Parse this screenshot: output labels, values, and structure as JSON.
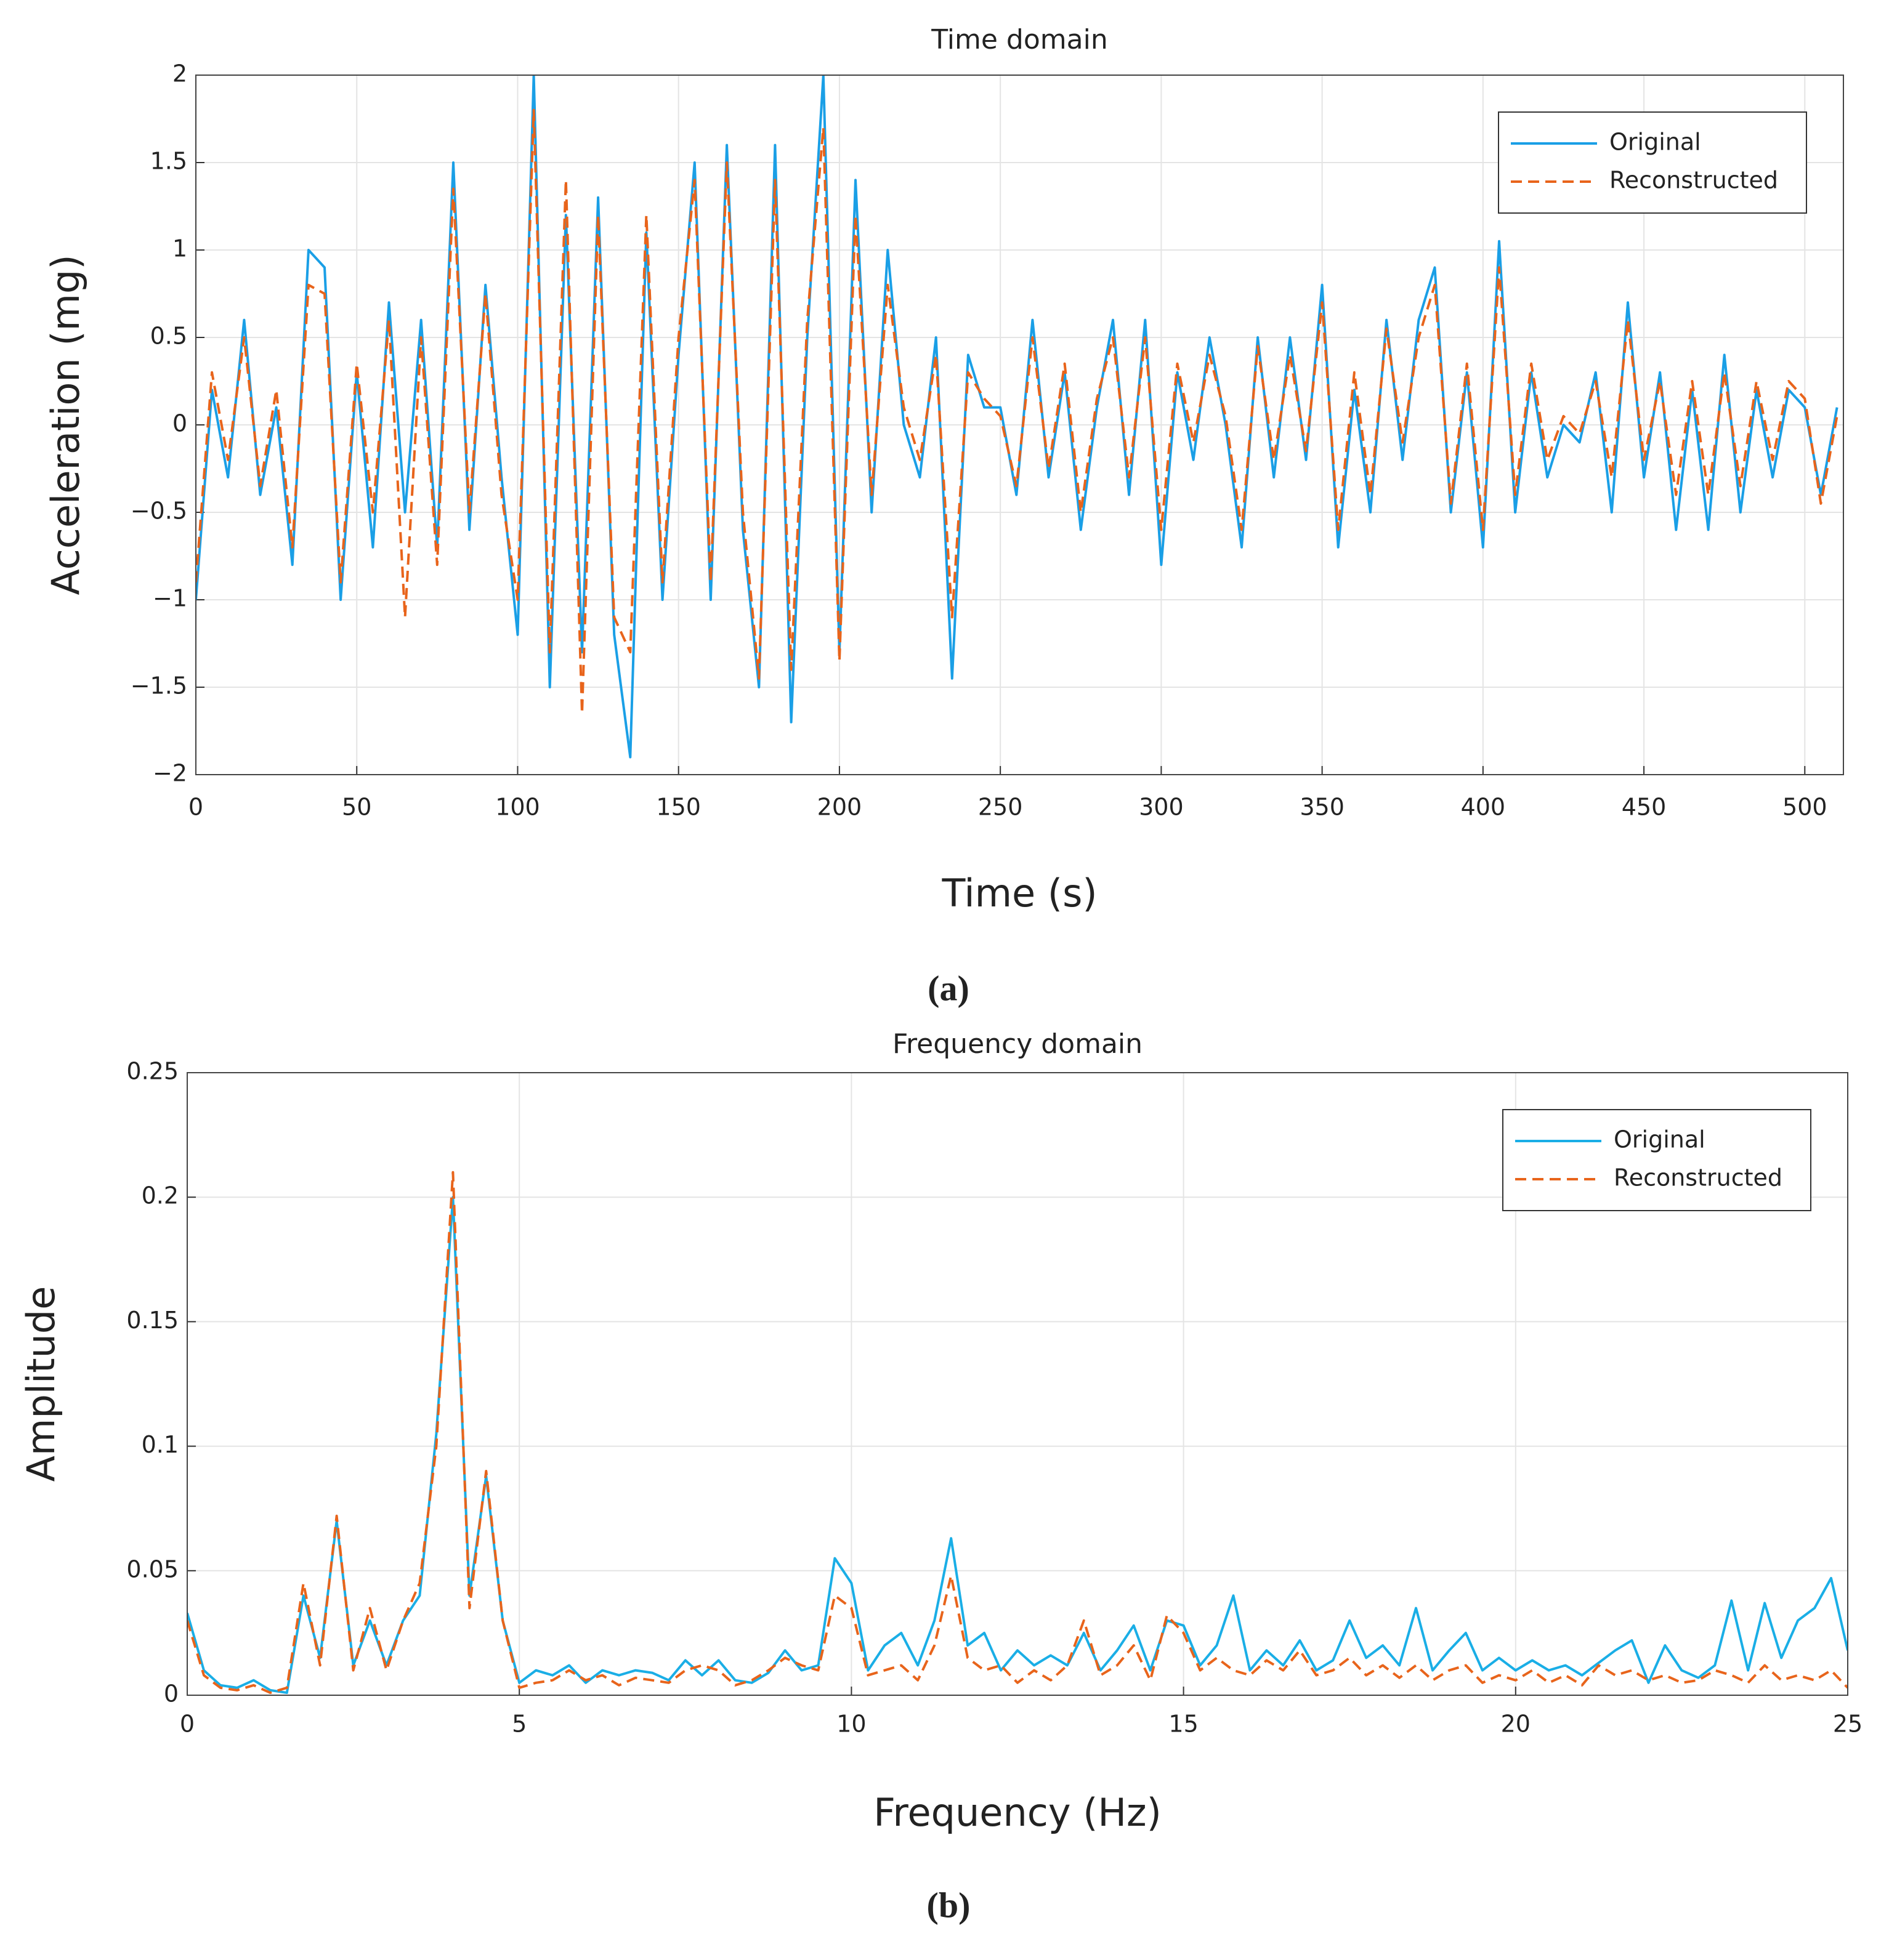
{
  "chart_data": [
    {
      "type": "line",
      "title": "Time domain",
      "x_label": "Time (s)",
      "y_label": "Acceleration (mg)",
      "caption": "(a)",
      "xlim": [
        0,
        512
      ],
      "xticks": [
        0,
        50,
        100,
        150,
        200,
        250,
        300,
        350,
        400,
        450,
        500
      ],
      "ylim": [
        -2,
        2
      ],
      "yticks": [
        {
          "value": -2,
          "label": "−2"
        },
        {
          "value": -1.5,
          "label": "−1.5"
        },
        {
          "value": -1,
          "label": "−1"
        },
        {
          "value": -0.5,
          "label": "−0.5"
        },
        0,
        0.5,
        1,
        1.5,
        2
      ],
      "grid": true,
      "legend": "northeast",
      "x": [
        0,
        5,
        10,
        15,
        20,
        25,
        30,
        35,
        40,
        45,
        50,
        55,
        60,
        65,
        70,
        75,
        80,
        85,
        90,
        95,
        100,
        105,
        110,
        115,
        120,
        125,
        130,
        135,
        140,
        145,
        150,
        155,
        160,
        165,
        170,
        175,
        180,
        185,
        190,
        195,
        200,
        205,
        210,
        215,
        220,
        225,
        230,
        235,
        240,
        245,
        250,
        255,
        260,
        265,
        270,
        275,
        280,
        285,
        290,
        295,
        300,
        305,
        310,
        315,
        320,
        325,
        330,
        335,
        340,
        345,
        350,
        355,
        360,
        365,
        370,
        375,
        380,
        385,
        390,
        395,
        400,
        405,
        410,
        415,
        420,
        425,
        430,
        435,
        440,
        445,
        450,
        455,
        460,
        465,
        470,
        475,
        480,
        485,
        490,
        495,
        500,
        505,
        510
      ],
      "series": [
        {
          "name": "Original",
          "color": "#1a9fe6",
          "style": "solid",
          "values": [
            -1.0,
            0.2,
            -0.3,
            0.6,
            -0.4,
            0.1,
            -0.8,
            1.0,
            0.9,
            -1.0,
            0.3,
            -0.7,
            0.7,
            -0.5,
            0.6,
            -0.7,
            1.5,
            -0.6,
            0.8,
            -0.3,
            -1.2,
            2.0,
            -1.5,
            1.2,
            -1.3,
            1.3,
            -1.2,
            -1.9,
            1.1,
            -1.0,
            0.4,
            1.5,
            -1.0,
            1.6,
            -0.6,
            -1.5,
            1.6,
            -1.7,
            0.5,
            2.0,
            -1.3,
            1.4,
            -0.5,
            1.0,
            0.0,
            -0.3,
            0.5,
            -1.45,
            0.4,
            0.1,
            0.1,
            -0.4,
            0.6,
            -0.3,
            0.3,
            -0.6,
            0.1,
            0.6,
            -0.4,
            0.6,
            -0.8,
            0.3,
            -0.2,
            0.5,
            0.0,
            -0.7,
            0.5,
            -0.3,
            0.5,
            -0.2,
            0.8,
            -0.7,
            0.2,
            -0.5,
            0.6,
            -0.2,
            0.6,
            0.9,
            -0.5,
            0.3,
            -0.7,
            1.05,
            -0.5,
            0.3,
            -0.3,
            0.0,
            -0.1,
            0.3,
            -0.5,
            0.7,
            -0.3,
            0.3,
            -0.6,
            0.2,
            -0.6,
            0.4,
            -0.5,
            0.2,
            -0.3,
            0.2,
            0.1,
            -0.4,
            0.1
          ]
        },
        {
          "name": "Reconstructed",
          "color": "#e8641b",
          "style": "dashed",
          "values": [
            -0.9,
            0.3,
            -0.2,
            0.5,
            -0.35,
            0.2,
            -0.7,
            0.8,
            0.75,
            -0.9,
            0.35,
            -0.5,
            0.6,
            -1.1,
            0.5,
            -0.8,
            1.35,
            -0.5,
            0.75,
            -0.4,
            -1.0,
            1.8,
            -1.3,
            1.4,
            -1.65,
            1.2,
            -1.1,
            -1.3,
            1.2,
            -0.9,
            0.5,
            1.4,
            -0.9,
            1.5,
            -0.5,
            -1.45,
            1.4,
            -1.4,
            0.6,
            1.7,
            -1.35,
            1.2,
            -0.4,
            0.8,
            0.1,
            -0.2,
            0.4,
            -1.1,
            0.3,
            0.15,
            0.05,
            -0.35,
            0.5,
            -0.25,
            0.35,
            -0.5,
            0.15,
            0.5,
            -0.3,
            0.5,
            -0.6,
            0.35,
            -0.1,
            0.4,
            0.05,
            -0.6,
            0.45,
            -0.2,
            0.4,
            -0.15,
            0.7,
            -0.6,
            0.3,
            -0.4,
            0.55,
            -0.1,
            0.5,
            0.8,
            -0.45,
            0.35,
            -0.6,
            0.9,
            -0.4,
            0.35,
            -0.2,
            0.05,
            -0.05,
            0.25,
            -0.3,
            0.6,
            -0.2,
            0.25,
            -0.4,
            0.25,
            -0.4,
            0.3,
            -0.35,
            0.25,
            -0.2,
            0.25,
            0.15,
            -0.45,
            0.05
          ]
        }
      ]
    },
    {
      "type": "line",
      "title": "Frequency domain",
      "x_label": "Frequency (Hz)",
      "y_label": "Amplitude",
      "caption": "(b)",
      "xlim": [
        0,
        25
      ],
      "xticks": [
        0,
        5,
        10,
        15,
        20,
        25
      ],
      "ylim": [
        0,
        0.25
      ],
      "yticks": [
        0,
        0.05,
        0.1,
        0.15,
        0.2,
        0.25
      ],
      "grid": true,
      "legend": "northeast",
      "x": [
        0,
        0.25,
        0.5,
        0.75,
        1,
        1.25,
        1.5,
        1.75,
        2,
        2.25,
        2.5,
        2.75,
        3,
        3.25,
        3.5,
        3.75,
        4,
        4.25,
        4.5,
        4.75,
        5,
        5.25,
        5.5,
        5.75,
        6,
        6.25,
        6.5,
        6.75,
        7,
        7.25,
        7.5,
        7.75,
        8,
        8.25,
        8.5,
        8.75,
        9,
        9.25,
        9.5,
        9.75,
        10,
        10.25,
        10.5,
        10.75,
        11,
        11.25,
        11.5,
        11.75,
        12,
        12.25,
        12.5,
        12.75,
        13,
        13.25,
        13.5,
        13.75,
        14,
        14.25,
        14.5,
        14.75,
        15,
        15.25,
        15.5,
        15.75,
        16,
        16.25,
        16.5,
        16.75,
        17,
        17.25,
        17.5,
        17.75,
        18,
        18.25,
        18.5,
        18.75,
        19,
        19.25,
        19.5,
        19.75,
        20,
        20.25,
        20.5,
        20.75,
        21,
        21.25,
        21.5,
        21.75,
        22,
        22.25,
        22.5,
        22.75,
        23,
        23.25,
        23.5,
        23.75,
        24,
        24.25,
        24.5,
        24.75,
        25
      ],
      "series": [
        {
          "name": "Original",
          "color": "#1aaee6",
          "style": "solid",
          "values": [
            0.033,
            0.01,
            0.004,
            0.003,
            0.006,
            0.002,
            0.001,
            0.04,
            0.015,
            0.07,
            0.012,
            0.03,
            0.012,
            0.03,
            0.04,
            0.105,
            0.2,
            0.04,
            0.088,
            0.03,
            0.005,
            0.01,
            0.008,
            0.012,
            0.005,
            0.01,
            0.008,
            0.01,
            0.009,
            0.006,
            0.014,
            0.008,
            0.014,
            0.006,
            0.005,
            0.009,
            0.018,
            0.01,
            0.012,
            0.055,
            0.045,
            0.01,
            0.02,
            0.025,
            0.012,
            0.03,
            0.063,
            0.02,
            0.025,
            0.01,
            0.018,
            0.012,
            0.016,
            0.012,
            0.025,
            0.01,
            0.018,
            0.028,
            0.01,
            0.03,
            0.028,
            0.012,
            0.02,
            0.04,
            0.01,
            0.018,
            0.012,
            0.022,
            0.01,
            0.014,
            0.03,
            0.015,
            0.02,
            0.012,
            0.035,
            0.01,
            0.018,
            0.025,
            0.01,
            0.015,
            0.01,
            0.014,
            0.01,
            0.012,
            0.008,
            0.013,
            0.018,
            0.022,
            0.005,
            0.02,
            0.01,
            0.007,
            0.012,
            0.038,
            0.01,
            0.037,
            0.015,
            0.03,
            0.035,
            0.047,
            0.018
          ]
        },
        {
          "name": "Reconstructed",
          "color": "#e8641b",
          "style": "dashed",
          "values": [
            0.03,
            0.008,
            0.003,
            0.002,
            0.004,
            0.001,
            0.003,
            0.045,
            0.012,
            0.072,
            0.01,
            0.035,
            0.01,
            0.03,
            0.045,
            0.1,
            0.21,
            0.035,
            0.09,
            0.03,
            0.003,
            0.005,
            0.006,
            0.01,
            0.006,
            0.008,
            0.004,
            0.007,
            0.006,
            0.005,
            0.01,
            0.012,
            0.01,
            0.004,
            0.006,
            0.01,
            0.015,
            0.012,
            0.01,
            0.04,
            0.035,
            0.008,
            0.01,
            0.012,
            0.006,
            0.02,
            0.048,
            0.015,
            0.01,
            0.012,
            0.005,
            0.01,
            0.006,
            0.012,
            0.03,
            0.008,
            0.012,
            0.02,
            0.006,
            0.032,
            0.025,
            0.01,
            0.015,
            0.01,
            0.008,
            0.014,
            0.01,
            0.018,
            0.008,
            0.01,
            0.015,
            0.008,
            0.012,
            0.007,
            0.012,
            0.006,
            0.01,
            0.012,
            0.005,
            0.008,
            0.006,
            0.01,
            0.005,
            0.008,
            0.004,
            0.012,
            0.008,
            0.01,
            0.006,
            0.008,
            0.005,
            0.006,
            0.01,
            0.008,
            0.005,
            0.012,
            0.006,
            0.008,
            0.006,
            0.01,
            0.003
          ]
        }
      ]
    }
  ]
}
